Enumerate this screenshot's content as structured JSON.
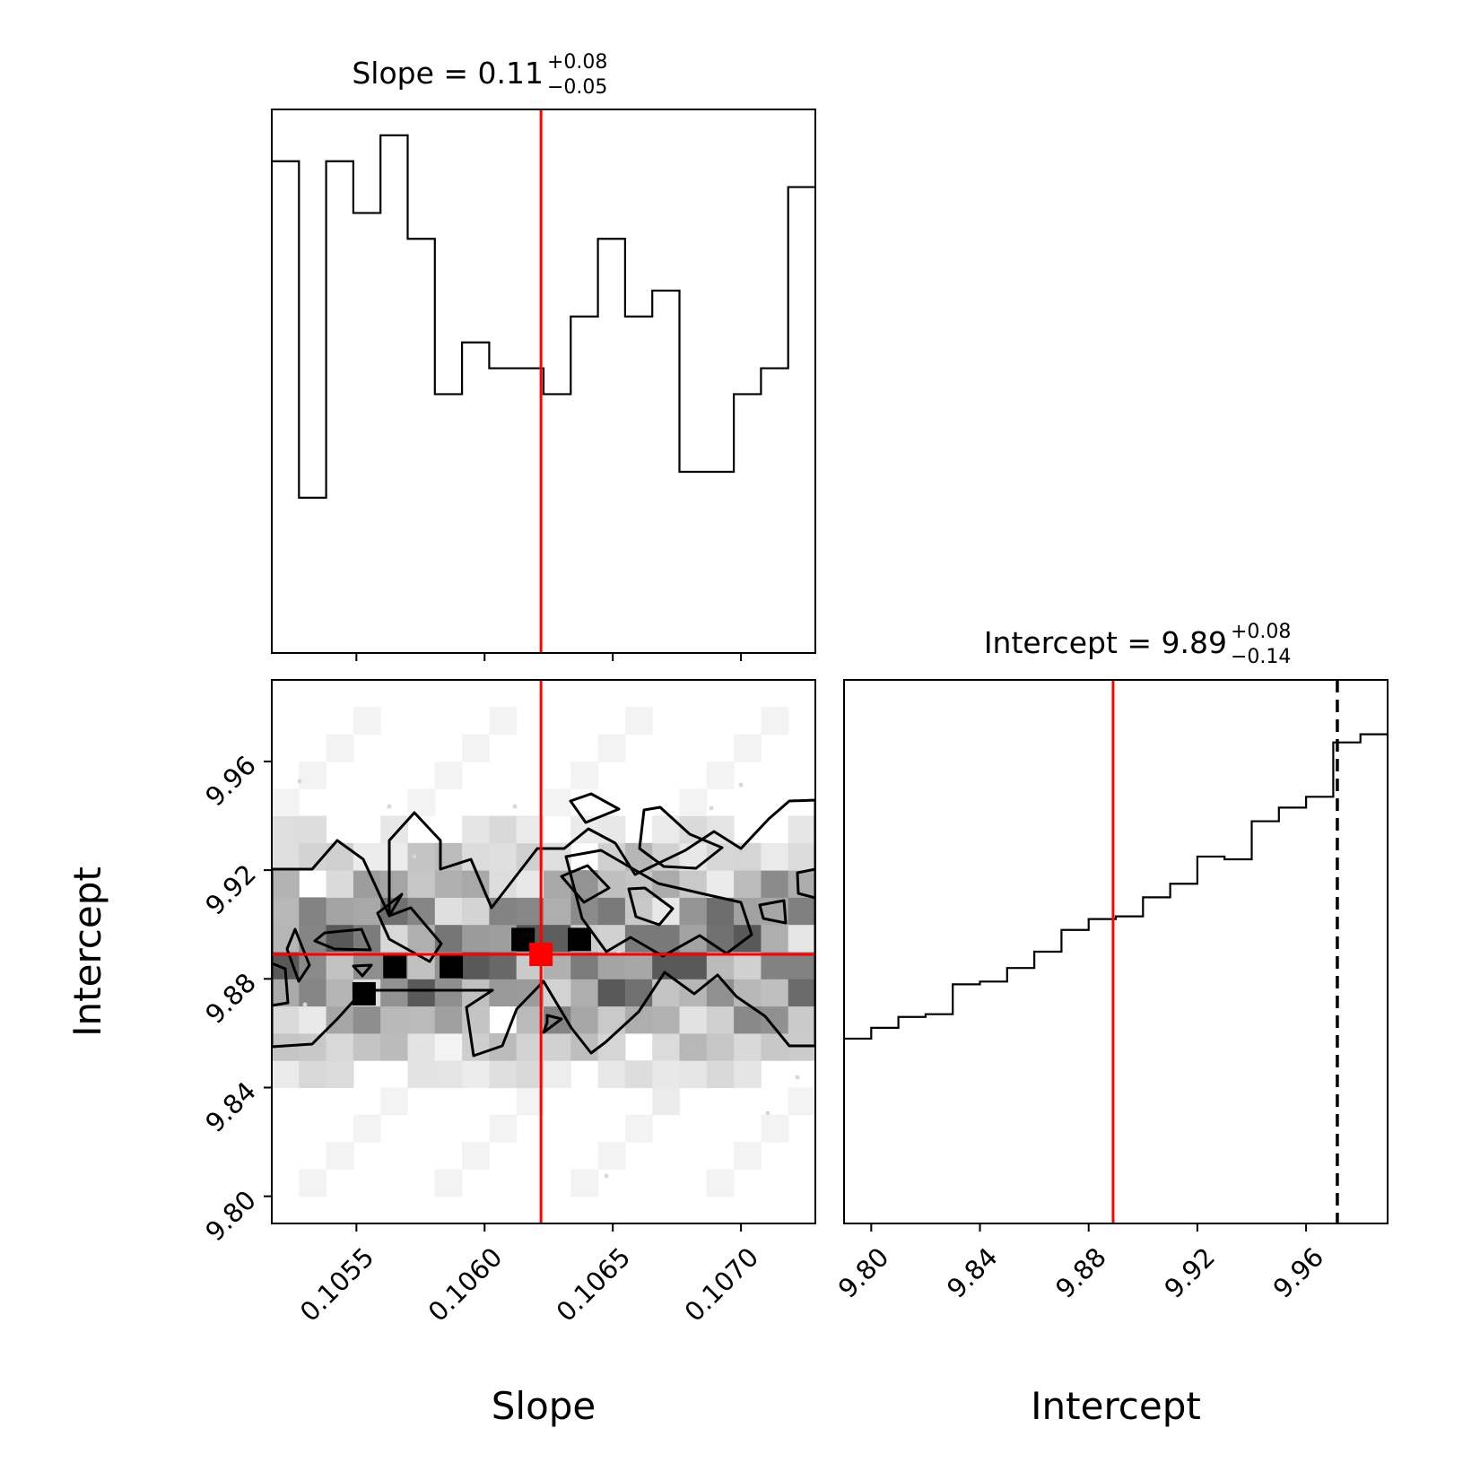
{
  "chart_data": {
    "type": "corner",
    "truths": {
      "Slope": 0.10622,
      "Intercept": 9.889
    },
    "panels": {
      "slope_hist": {
        "type": "histogram",
        "title": {
          "main": "Slope = 0.11",
          "sup": "+0.08",
          "sub": "−0.05"
        },
        "xlim": [
          0.10517,
          0.10729
        ],
        "bin_edges": [
          0.10517,
          0.105276,
          0.105382,
          0.105488,
          0.105594,
          0.1057,
          0.105806,
          0.105912,
          0.106018,
          0.106124,
          0.10623,
          0.106336,
          0.106442,
          0.106548,
          0.106654,
          0.10676,
          0.106866,
          0.106972,
          0.107078,
          0.107184,
          0.10729
        ],
        "counts": [
          19,
          6,
          19,
          17,
          20,
          16,
          10,
          12,
          11,
          11,
          10,
          13,
          16,
          13,
          14,
          7,
          7,
          10,
          11,
          18
        ],
        "ymax": 21,
        "truth_line": 0.10622
      },
      "joint": {
        "type": "heatmap",
        "xlabel": "Slope",
        "ylabel": "Intercept",
        "xlim": [
          0.10517,
          0.10729
        ],
        "ylim": [
          9.79,
          9.99
        ],
        "xticks": [
          {
            "value": 0.1055,
            "label": "0.1055"
          },
          {
            "value": 0.106,
            "label": "0.1060"
          },
          {
            "value": 0.1065,
            "label": "0.1065"
          },
          {
            "value": 0.107,
            "label": "0.1070"
          }
        ],
        "yticks": [
          {
            "value": 9.8,
            "label": "9.80"
          },
          {
            "value": 9.84,
            "label": "9.84"
          },
          {
            "value": 9.88,
            "label": "9.88"
          },
          {
            "value": 9.92,
            "label": "9.92"
          },
          {
            "value": 9.96,
            "label": "9.96"
          }
        ],
        "peaks": [
          [
            0.10553,
            9.8745
          ],
          [
            0.10565,
            9.8845
          ],
          [
            0.10587,
            9.8845
          ],
          [
            0.10615,
            9.8945
          ],
          [
            0.10637,
            9.8945
          ]
        ],
        "truth": [
          0.10622,
          9.889
        ]
      },
      "intercept_hist": {
        "type": "histogram",
        "title": {
          "main": "Intercept = 9.89",
          "sup": "+0.08",
          "sub": "−0.14"
        },
        "xlabel": "Intercept",
        "xlim": [
          9.79,
          9.99
        ],
        "xticks": [
          {
            "value": 9.8,
            "label": "9.80"
          },
          {
            "value": 9.84,
            "label": "9.84"
          },
          {
            "value": 9.88,
            "label": "9.88"
          },
          {
            "value": 9.92,
            "label": "9.92"
          },
          {
            "value": 9.96,
            "label": "9.96"
          }
        ],
        "bin_edges": [
          9.79,
          9.8,
          9.81,
          9.82,
          9.83,
          9.84,
          9.85,
          9.86,
          9.87,
          9.88,
          9.89,
          9.9,
          9.91,
          9.92,
          9.93,
          9.94,
          9.95,
          9.96,
          9.97,
          9.98,
          9.99
        ],
        "counts": [
          34,
          36,
          38,
          38.5,
          44,
          44.5,
          47,
          50,
          54,
          56,
          56.5,
          60,
          62.5,
          67.5,
          67,
          74,
          76.5,
          78.5,
          88.5,
          90
        ],
        "ymax": 100,
        "truth_line": 9.889,
        "dashed_line": 9.9715
      }
    }
  }
}
